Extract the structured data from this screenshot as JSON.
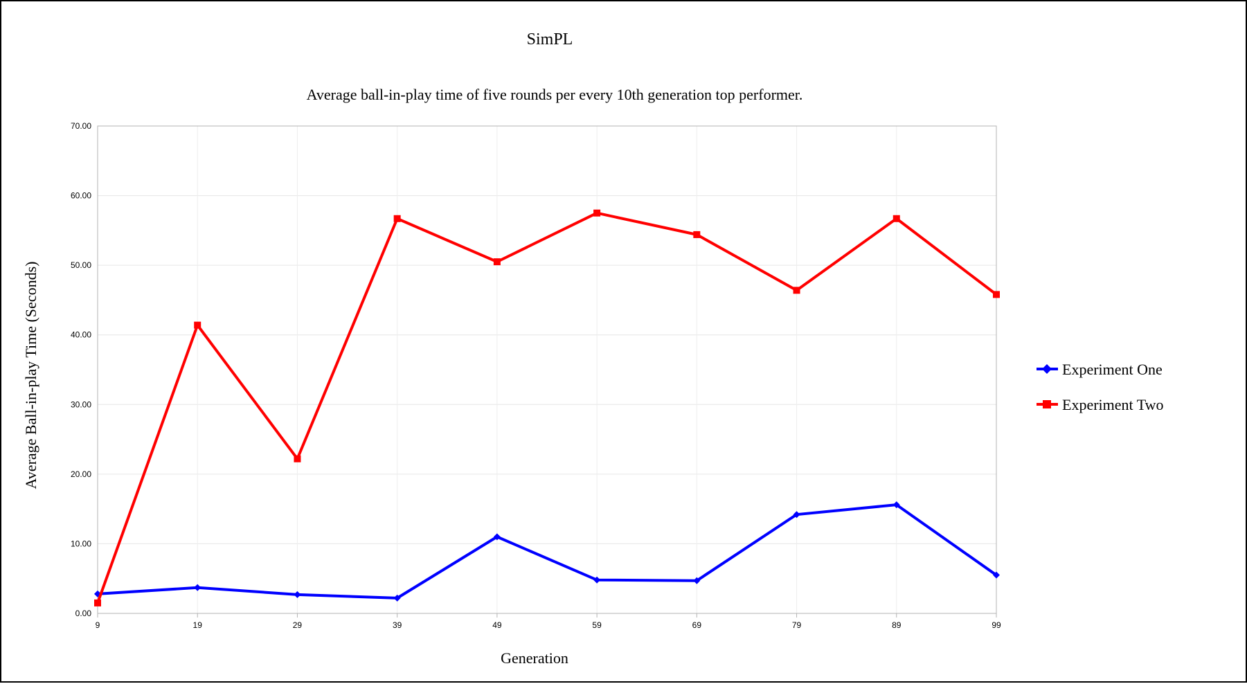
{
  "chart_data": {
    "type": "line",
    "title": "SimPL",
    "subtitle": "Average ball-in-play time of five rounds per every 10th generation top performer.",
    "xlabel": "Generation",
    "ylabel": "Average Ball-in-play Time (Seconds)",
    "x": [
      "9",
      "19",
      "29",
      "39",
      "49",
      "59",
      "69",
      "79",
      "89",
      "99"
    ],
    "ylim": [
      0,
      70
    ],
    "yticks": [
      "0.00",
      "10.00",
      "20.00",
      "30.00",
      "40.00",
      "50.00",
      "60.00",
      "70.00"
    ],
    "grid": true,
    "legend_position": "right",
    "series": [
      {
        "name": "Experiment One",
        "color": "#0000ff",
        "marker": "diamond",
        "values": [
          2.8,
          3.7,
          2.7,
          2.2,
          11.0,
          4.8,
          4.7,
          14.2,
          15.6,
          5.5
        ]
      },
      {
        "name": "Experiment Two",
        "color": "#ff0000",
        "marker": "square",
        "values": [
          1.5,
          41.4,
          22.2,
          56.7,
          50.5,
          57.5,
          54.4,
          46.4,
          56.7,
          45.8
        ]
      }
    ]
  }
}
